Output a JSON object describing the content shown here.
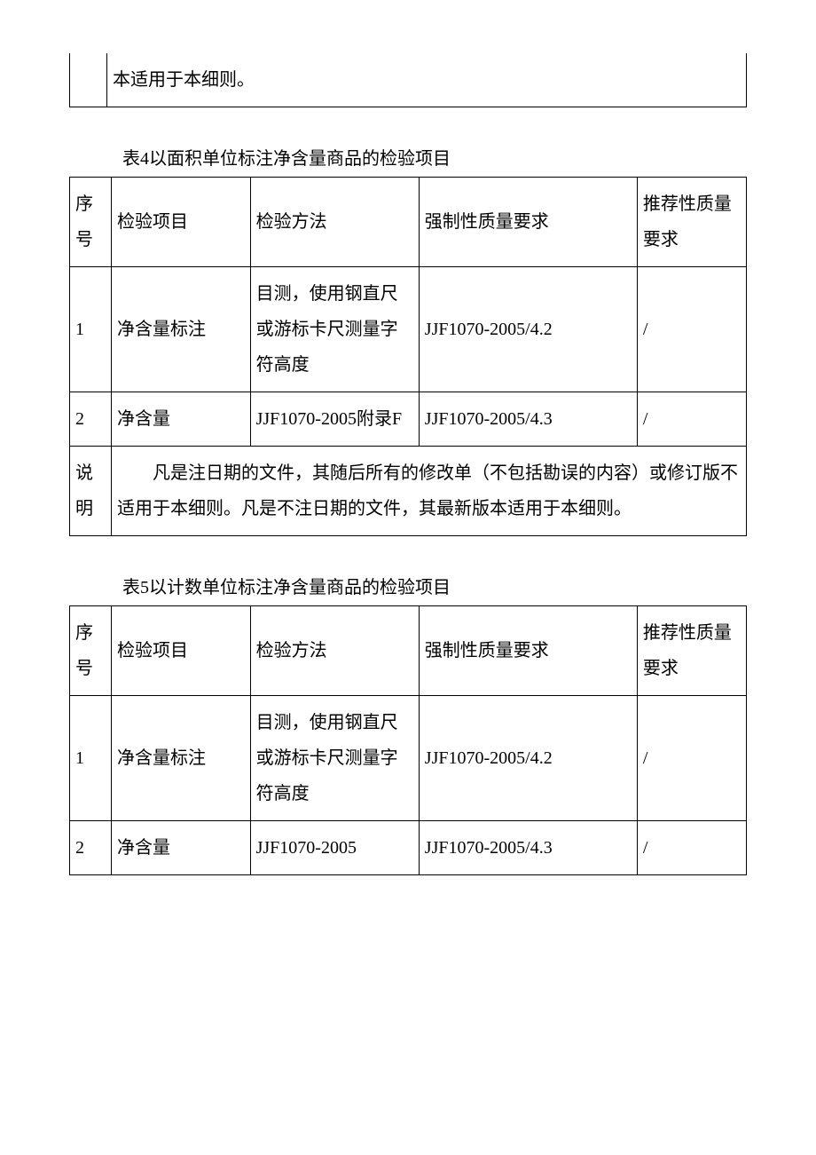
{
  "page": {
    "background_color": "#ffffff",
    "text_color": "#000000",
    "border_color": "#000000",
    "font_family": "SimSun",
    "font_size_pt": 15
  },
  "top_fragment": {
    "text": "本适用于本细则。"
  },
  "table4": {
    "caption": "表4以面积单位标注净含量商品的检验项目",
    "headers": {
      "seq": "序号",
      "item": "检验项目",
      "method": "检验方法",
      "mandatory": "强制性质量要求",
      "recommended": "推荐性质量要求"
    },
    "rows": [
      {
        "seq": "1",
        "item": "净含量标注",
        "method": "目测，使用钢直尺或游标卡尺测量字符高度",
        "mandatory": "JJF1070-2005/4.2",
        "recommended": "/"
      },
      {
        "seq": "2",
        "item": "净含量",
        "method": "JJF1070-2005附录F",
        "mandatory": "JJF1070-2005/4.3",
        "recommended": "/"
      }
    ],
    "note_label": "说明",
    "note_text": "凡是注日期的文件，其随后所有的修改单（不包括勘误的内容）或修订版不适用于本细则。凡是不注日期的文件，其最新版本适用于本细则。"
  },
  "table5": {
    "caption": "表5以计数单位标注净含量商品的检验项目",
    "headers": {
      "seq": "序号",
      "item": "检验项目",
      "method": "检验方法",
      "mandatory": "强制性质量要求",
      "recommended": "推荐性质量要求"
    },
    "rows": [
      {
        "seq": "1",
        "item": "净含量标注",
        "method": "目测，使用钢直尺或游标卡尺测量字符高度",
        "mandatory": "JJF1070-2005/4.2",
        "recommended": "/"
      },
      {
        "seq": "2",
        "item": "净含量",
        "method": "JJF1070-2005",
        "mandatory": "JJF1070-2005/4.3",
        "recommended": "/"
      }
    ]
  }
}
